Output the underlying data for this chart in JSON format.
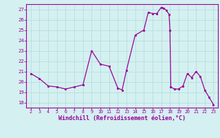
{
  "hours": [
    2,
    3,
    4,
    5,
    6,
    7,
    8,
    9,
    10,
    11,
    12,
    12.5,
    13,
    14,
    15,
    15.5,
    16,
    16.5,
    17,
    17.3,
    17.6,
    17.9,
    18.0,
    18.1,
    18.5,
    19,
    19.5,
    20,
    20.5,
    21,
    21.5,
    22,
    22.5,
    23
  ],
  "values": [
    20.8,
    20.3,
    19.6,
    19.5,
    19.3,
    19.5,
    19.7,
    23.0,
    21.7,
    21.5,
    19.4,
    19.2,
    21.1,
    24.5,
    25.0,
    26.7,
    26.6,
    26.6,
    27.2,
    27.1,
    26.9,
    26.5,
    25.0,
    19.5,
    19.3,
    19.3,
    19.6,
    20.8,
    20.4,
    21.0,
    20.5,
    19.2,
    18.5,
    17.8
  ],
  "xlabel": "Windchill (Refroidissement éolien,°C)",
  "ylim": [
    17.5,
    27.5
  ],
  "xlim": [
    1.5,
    23.5
  ],
  "yticks": [
    18,
    19,
    20,
    21,
    22,
    23,
    24,
    25,
    26,
    27
  ],
  "xticks": [
    2,
    3,
    4,
    5,
    6,
    7,
    8,
    9,
    10,
    11,
    12,
    13,
    14,
    15,
    16,
    17,
    18,
    19,
    20,
    21,
    22,
    23
  ],
  "line_color": "#990099",
  "marker_color": "#990099",
  "bg_color": "#d4f0f0",
  "grid_color": "#b8dede",
  "axis_color": "#990099",
  "tick_color": "#990099",
  "label_color": "#990099"
}
